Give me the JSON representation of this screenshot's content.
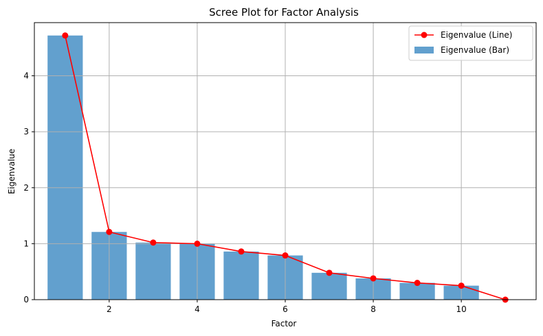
{
  "chart_data": {
    "type": "bar",
    "title": "Scree Plot for Factor Analysis",
    "xlabel": "Factor",
    "ylabel": "Eigenvalue",
    "xlim": [
      0.3,
      11.7
    ],
    "ylim": [
      0,
      4.95
    ],
    "x_ticks": [
      2,
      4,
      6,
      8,
      10
    ],
    "y_ticks": [
      0,
      1,
      2,
      3,
      4
    ],
    "grid": true,
    "legend_position": "top-right",
    "series": [
      {
        "name": "Eigenvalue (Line)",
        "type": "line",
        "color": "#ff0000",
        "marker": "circle",
        "x": [
          1,
          2,
          3,
          4,
          5,
          6,
          7,
          8,
          9,
          10,
          11
        ],
        "values": [
          4.72,
          1.21,
          1.02,
          1.0,
          0.86,
          0.79,
          0.48,
          0.38,
          0.3,
          0.25,
          0.0
        ]
      },
      {
        "name": "Eigenvalue (Bar)",
        "type": "bar",
        "color": "#5a9bcb",
        "x": [
          1,
          2,
          3,
          4,
          5,
          6,
          7,
          8,
          9,
          10
        ],
        "values": [
          4.72,
          1.21,
          1.02,
          1.0,
          0.86,
          0.79,
          0.48,
          0.38,
          0.3,
          0.25
        ]
      }
    ]
  }
}
